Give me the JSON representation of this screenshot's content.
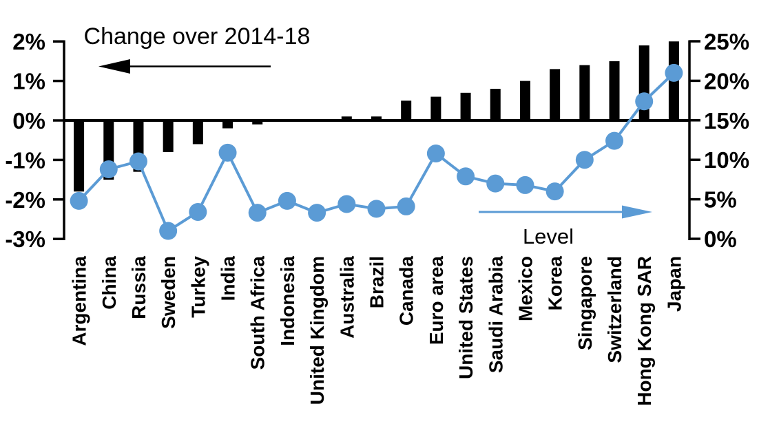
{
  "chart_data": {
    "type": "combo-bar-line",
    "categories": [
      "Argentina",
      "China",
      "Russia",
      "Sweden",
      "Turkey",
      "India",
      "South Africa",
      "Indonesia",
      "United Kingdom",
      "Australia",
      "Brazil",
      "Canada",
      "Euro area",
      "United States",
      "Saudi Arabia",
      "Mexico",
      "Korea",
      "Singapore",
      "Switzerland",
      "Hong Kong SAR",
      "Japan"
    ],
    "series": [
      {
        "name": "Change over 2014-18",
        "type": "bar",
        "axis": "left",
        "color": "#000000",
        "values": [
          -1.8,
          -1.5,
          -1.3,
          -0.8,
          -0.6,
          -0.2,
          -0.1,
          0,
          0,
          0.1,
          0.1,
          0.5,
          0.6,
          0.7,
          0.8,
          1.0,
          1.3,
          1.4,
          1.5,
          1.9,
          2.0
        ]
      },
      {
        "name": "Level",
        "type": "line",
        "axis": "right",
        "color": "#5B9BD5",
        "values": [
          4.8,
          8.8,
          9.8,
          1.0,
          3.4,
          10.9,
          3.3,
          4.8,
          3.3,
          4.4,
          3.8,
          4.1,
          10.8,
          7.9,
          7.0,
          6.8,
          6.0,
          10.0,
          12.4,
          17.4,
          21.0
        ]
      }
    ],
    "left_axis": {
      "min": -3,
      "max": 2,
      "tick_values": [
        2,
        1,
        0,
        -1,
        -2,
        -3
      ],
      "tick_labels": [
        "2%",
        "1%",
        "0%",
        "-1%",
        "-2%",
        "-3%"
      ]
    },
    "right_axis": {
      "min": 0,
      "max": 25,
      "tick_values": [
        25,
        20,
        15,
        10,
        5,
        0
      ],
      "tick_labels": [
        "25%",
        "20%",
        "15%",
        "10%",
        "5%",
        "0%"
      ]
    },
    "annotations": {
      "bar_label": {
        "text": "Change over 2014-18",
        "arrow_direction": "left",
        "color": "#000000"
      },
      "line_label": {
        "text": "Level",
        "arrow_direction": "right",
        "color": "#5B9BD5"
      }
    },
    "grid": false,
    "legend_position": "in-chart annotations with arrows"
  },
  "colors": {
    "bar": "#000000",
    "line": "#5B9BD5",
    "background": "#FFFFFF",
    "text": "#000000"
  }
}
